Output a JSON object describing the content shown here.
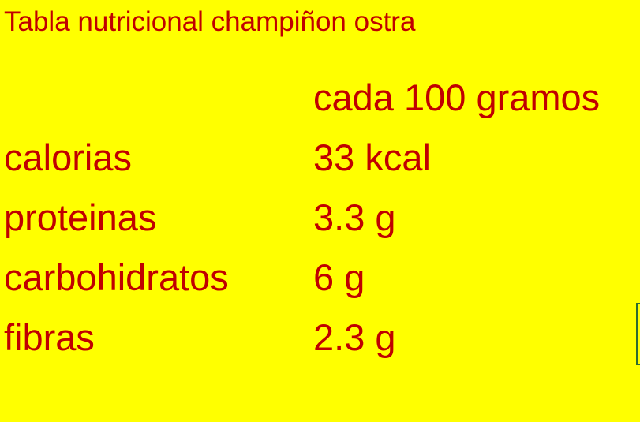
{
  "title": "Tabla nutricional champiñon ostra",
  "header": "cada 100 gramos",
  "rows": [
    {
      "label": "calorias",
      "value": "33 kcal"
    },
    {
      "label": "proteinas",
      "value": "3.3 g"
    },
    {
      "label": "carbohidratos",
      "value": "6 g"
    },
    {
      "label": "fibras",
      "value": "2.3 g"
    }
  ],
  "colors": {
    "background": "#FFFF00",
    "text": "#C00000",
    "selection": "#2E6B30"
  }
}
